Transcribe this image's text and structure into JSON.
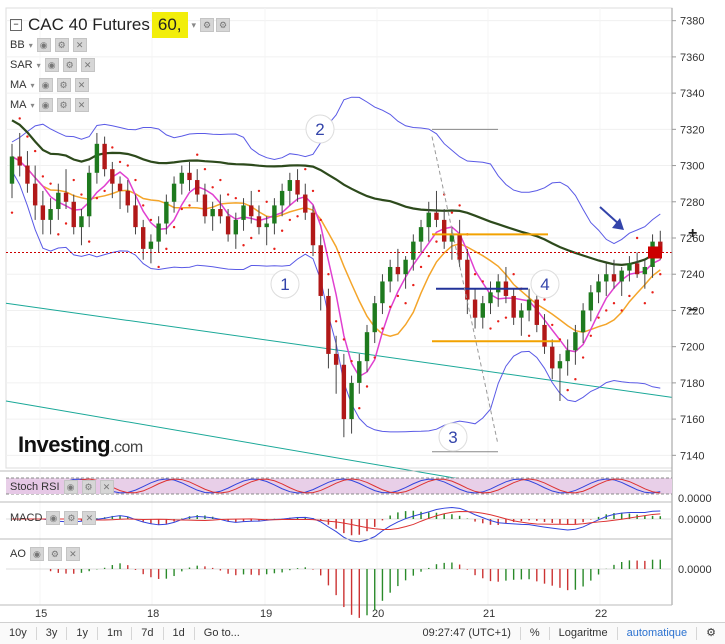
{
  "header": {
    "symbol": "CAC 40 Futures",
    "interval": "60,"
  },
  "indicators": {
    "bb": "BB",
    "sar": "SAR",
    "ma1": "MA",
    "ma2": "MA"
  },
  "panes": {
    "stoch": "Stoch RSI",
    "macd": "MACD",
    "ao": "AO",
    "zero": "0.0000"
  },
  "brand": {
    "name": "Investing",
    "suffix": ".com"
  },
  "toolbar": {
    "ranges": [
      "10y",
      "3y",
      "1y",
      "1m",
      "7d",
      "1d"
    ],
    "goto": "Go to...",
    "time": "09:27:47 (UTC+1)",
    "percent": "%",
    "log": "Logaritme",
    "auto": "automatique"
  },
  "annotations": [
    "1",
    "2",
    "3",
    "4"
  ],
  "colors": {
    "up": "#1e7a1e",
    "down": "#b11818",
    "bb": "#5a5ae6",
    "ma_fast": "#e040d0",
    "ma_slow": "#f4a52a",
    "ma_long": "#2d4a1c",
    "channel": "#1aa898",
    "sar": "#e8201a"
  },
  "chart_data": {
    "type": "candlestick",
    "price_axis": {
      "ticks": [
        7380,
        7360,
        7340,
        7320,
        7300,
        7280,
        7260,
        7240,
        7220,
        7200,
        7180,
        7160,
        7140
      ],
      "range": [
        7133,
        7387
      ]
    },
    "x_labels": [
      "15",
      "18",
      "19",
      "20",
      "21",
      "22"
    ],
    "last_price": 7252,
    "candles": [
      [
        7290,
        7312,
        7282,
        7305
      ],
      [
        7305,
        7318,
        7294,
        7300
      ],
      [
        7300,
        7308,
        7285,
        7290
      ],
      [
        7290,
        7300,
        7270,
        7278
      ],
      [
        7278,
        7286,
        7262,
        7270
      ],
      [
        7270,
        7282,
        7262,
        7276
      ],
      [
        7276,
        7290,
        7270,
        7285
      ],
      [
        7285,
        7298,
        7276,
        7280
      ],
      [
        7280,
        7284,
        7262,
        7266
      ],
      [
        7266,
        7276,
        7256,
        7272
      ],
      [
        7272,
        7300,
        7266,
        7296
      ],
      [
        7296,
        7318,
        7290,
        7312
      ],
      [
        7312,
        7316,
        7294,
        7298
      ],
      [
        7298,
        7302,
        7282,
        7290
      ],
      [
        7290,
        7294,
        7276,
        7286
      ],
      [
        7286,
        7292,
        7274,
        7278
      ],
      [
        7278,
        7284,
        7262,
        7266
      ],
      [
        7266,
        7270,
        7248,
        7254
      ],
      [
        7254,
        7262,
        7246,
        7258
      ],
      [
        7258,
        7272,
        7252,
        7268
      ],
      [
        7268,
        7284,
        7262,
        7280
      ],
      [
        7280,
        7294,
        7274,
        7290
      ],
      [
        7290,
        7300,
        7284,
        7296
      ],
      [
        7296,
        7302,
        7286,
        7292
      ],
      [
        7292,
        7298,
        7280,
        7284
      ],
      [
        7284,
        7290,
        7268,
        7272
      ],
      [
        7272,
        7280,
        7264,
        7276
      ],
      [
        7276,
        7284,
        7268,
        7272
      ],
      [
        7272,
        7276,
        7258,
        7262
      ],
      [
        7262,
        7274,
        7254,
        7270
      ],
      [
        7270,
        7282,
        7264,
        7278
      ],
      [
        7278,
        7286,
        7268,
        7272
      ],
      [
        7272,
        7278,
        7262,
        7266
      ],
      [
        7266,
        7272,
        7256,
        7268
      ],
      [
        7268,
        7282,
        7262,
        7278
      ],
      [
        7278,
        7290,
        7272,
        7286
      ],
      [
        7286,
        7296,
        7278,
        7292
      ],
      [
        7292,
        7298,
        7280,
        7284
      ],
      [
        7284,
        7290,
        7270,
        7274
      ],
      [
        7274,
        7278,
        7250,
        7256
      ],
      [
        7256,
        7262,
        7220,
        7228
      ],
      [
        7228,
        7232,
        7188,
        7196
      ],
      [
        7196,
        7206,
        7174,
        7190
      ],
      [
        7190,
        7196,
        7150,
        7160
      ],
      [
        7160,
        7184,
        7152,
        7180
      ],
      [
        7180,
        7196,
        7174,
        7192
      ],
      [
        7192,
        7212,
        7186,
        7208
      ],
      [
        7208,
        7228,
        7202,
        7224
      ],
      [
        7224,
        7240,
        7218,
        7236
      ],
      [
        7236,
        7248,
        7230,
        7244
      ],
      [
        7244,
        7254,
        7236,
        7240
      ],
      [
        7240,
        7250,
        7232,
        7248
      ],
      [
        7248,
        7262,
        7242,
        7258
      ],
      [
        7258,
        7270,
        7252,
        7266
      ],
      [
        7266,
        7280,
        7258,
        7274
      ],
      [
        7274,
        7286,
        7266,
        7270
      ],
      [
        7270,
        7276,
        7254,
        7258
      ],
      [
        7258,
        7266,
        7248,
        7262
      ],
      [
        7262,
        7270,
        7244,
        7248
      ],
      [
        7248,
        7254,
        7218,
        7226
      ],
      [
        7226,
        7232,
        7210,
        7216
      ],
      [
        7216,
        7228,
        7210,
        7224
      ],
      [
        7224,
        7236,
        7218,
        7230
      ],
      [
        7230,
        7240,
        7222,
        7236
      ],
      [
        7236,
        7244,
        7224,
        7228
      ],
      [
        7228,
        7232,
        7212,
        7216
      ],
      [
        7216,
        7224,
        7206,
        7220
      ],
      [
        7220,
        7232,
        7214,
        7226
      ],
      [
        7226,
        7230,
        7208,
        7212
      ],
      [
        7212,
        7218,
        7196,
        7200
      ],
      [
        7200,
        7204,
        7182,
        7188
      ],
      [
        7188,
        7196,
        7170,
        7192
      ],
      [
        7192,
        7204,
        7184,
        7198
      ],
      [
        7198,
        7212,
        7190,
        7208
      ],
      [
        7208,
        7224,
        7202,
        7220
      ],
      [
        7220,
        7234,
        7214,
        7230
      ],
      [
        7230,
        7240,
        7224,
        7236
      ],
      [
        7236,
        7246,
        7228,
        7240
      ],
      [
        7240,
        7248,
        7232,
        7236
      ],
      [
        7236,
        7244,
        7228,
        7242
      ],
      [
        7242,
        7250,
        7236,
        7246
      ],
      [
        7246,
        7252,
        7238,
        7240
      ],
      [
        7240,
        7248,
        7232,
        7244
      ],
      [
        7244,
        7262,
        7238,
        7258
      ],
      [
        7258,
        7264,
        7248,
        7252
      ]
    ]
  }
}
